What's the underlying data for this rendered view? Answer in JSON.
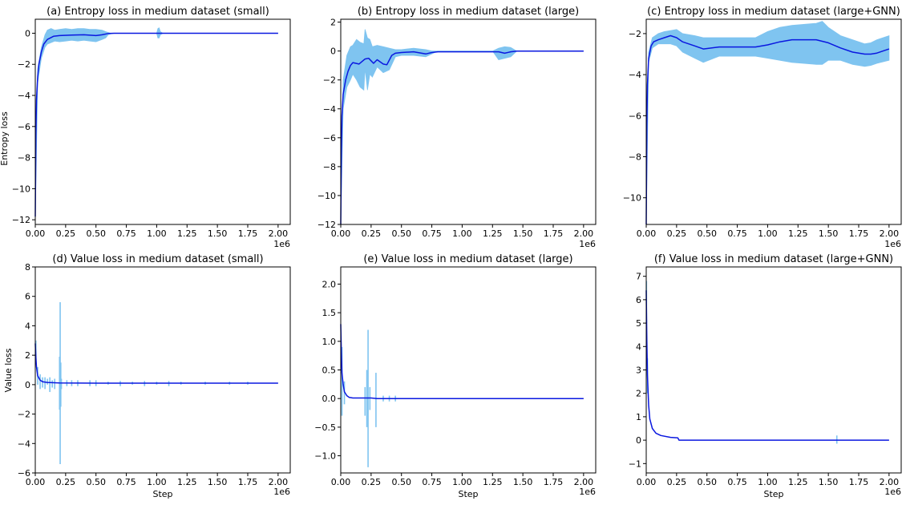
{
  "figure": {
    "background": "#ffffff",
    "band_color": "#7fc4f0",
    "line_color": "#0a18e0"
  },
  "chart_data": [
    {
      "type": "line",
      "title": "(a) Entropy loss in medium dataset (small)",
      "xlabel": "",
      "ylabel": "Entropy loss",
      "x_offset_label": "1e6",
      "xlim": [
        0.0,
        2.1
      ],
      "ylim": [
        -12.3,
        0.9
      ],
      "xticks": [
        0.0,
        0.25,
        0.5,
        0.75,
        1.0,
        1.25,
        1.5,
        1.75,
        2.0
      ],
      "xtick_labels": [
        "0.00",
        "0.25",
        "0.50",
        "0.75",
        "1.00",
        "1.25",
        "1.50",
        "1.75",
        "2.00"
      ],
      "yticks": [
        0,
        -2,
        -4,
        -6,
        -8,
        -10,
        -12
      ],
      "ytick_labels": [
        "0",
        "−2",
        "−4",
        "−6",
        "−8",
        "−10",
        "−12"
      ],
      "series": [
        {
          "kind": "mean",
          "x": [
            0.0,
            0.005,
            0.01,
            0.02,
            0.03,
            0.05,
            0.07,
            0.1,
            0.15,
            0.2,
            0.3,
            0.4,
            0.5,
            0.55,
            0.6,
            0.65,
            0.7,
            1.0,
            1.5,
            2.0
          ],
          "y": [
            -11.8,
            -6.5,
            -4.3,
            -2.8,
            -2.0,
            -1.2,
            -0.7,
            -0.4,
            -0.2,
            -0.15,
            -0.12,
            -0.1,
            -0.15,
            -0.1,
            -0.02,
            0.0,
            0.0,
            0.0,
            0.0,
            0.0
          ]
        },
        {
          "kind": "band",
          "x": [
            0.0,
            0.02,
            0.05,
            0.08,
            0.1,
            0.13,
            0.16,
            0.2,
            0.25,
            0.3,
            0.35,
            0.4,
            0.45,
            0.5,
            0.55,
            0.58,
            0.6,
            0.62,
            0.65,
            1.0,
            1.01,
            1.02,
            1.03,
            1.05,
            2.0
          ],
          "lower": [
            -11.8,
            -3.2,
            -1.6,
            -0.9,
            -0.7,
            -0.6,
            -0.5,
            -0.55,
            -0.5,
            -0.45,
            -0.5,
            -0.45,
            -0.5,
            -0.55,
            -0.4,
            -0.3,
            -0.1,
            -0.05,
            0.0,
            0.0,
            -0.3,
            -0.3,
            -0.1,
            0.0,
            0.0
          ],
          "upper": [
            -11.8,
            -2.3,
            -0.9,
            -0.1,
            0.2,
            0.3,
            0.2,
            0.25,
            0.3,
            0.25,
            0.3,
            0.3,
            0.25,
            0.25,
            0.2,
            0.1,
            0.05,
            0.0,
            0.0,
            0.0,
            0.3,
            0.35,
            0.1,
            0.0,
            0.0
          ]
        }
      ]
    },
    {
      "type": "line",
      "title": "(b) Entropy loss in medium dataset (large)",
      "xlabel": "",
      "ylabel": "",
      "x_offset_label": "1e6",
      "xlim": [
        0.0,
        2.1
      ],
      "ylim": [
        -12.0,
        2.2
      ],
      "xticks": [
        0.0,
        0.25,
        0.5,
        0.75,
        1.0,
        1.25,
        1.5,
        1.75,
        2.0
      ],
      "xtick_labels": [
        "0.00",
        "0.25",
        "0.50",
        "0.75",
        "1.00",
        "1.25",
        "1.50",
        "1.75",
        "2.00"
      ],
      "yticks": [
        2,
        0,
        -2,
        -4,
        -6,
        -8,
        -10,
        -12
      ],
      "ytick_labels": [
        "2",
        "0",
        "−2",
        "−4",
        "−6",
        "−8",
        "−10",
        "−12"
      ],
      "series": [
        {
          "kind": "mean",
          "x": [
            0.0,
            0.005,
            0.01,
            0.02,
            0.04,
            0.06,
            0.08,
            0.1,
            0.15,
            0.2,
            0.23,
            0.27,
            0.3,
            0.35,
            0.38,
            0.42,
            0.45,
            0.5,
            0.6,
            0.7,
            0.75,
            0.8,
            1.0,
            1.3,
            1.35,
            1.4,
            1.45,
            2.0
          ],
          "y": [
            -12.0,
            -7.0,
            -4.5,
            -3.0,
            -2.0,
            -1.4,
            -1.0,
            -0.8,
            -0.9,
            -0.55,
            -0.5,
            -0.85,
            -0.6,
            -0.9,
            -0.95,
            -0.3,
            -0.15,
            -0.1,
            -0.05,
            -0.2,
            -0.1,
            -0.05,
            -0.05,
            -0.05,
            -0.15,
            -0.05,
            0.0,
            0.0
          ]
        },
        {
          "kind": "band",
          "x": [
            0.0,
            0.02,
            0.05,
            0.08,
            0.1,
            0.13,
            0.16,
            0.19,
            0.2,
            0.22,
            0.24,
            0.26,
            0.3,
            0.35,
            0.4,
            0.45,
            0.5,
            0.6,
            0.7,
            0.75,
            0.8,
            1.25,
            1.3,
            1.35,
            1.4,
            1.45,
            2.0
          ],
          "lower": [
            -12.0,
            -4.0,
            -2.5,
            -2.0,
            -1.6,
            -2.0,
            -2.5,
            -2.7,
            -1.2,
            -2.7,
            -1.6,
            -1.8,
            -1.1,
            -1.5,
            -1.3,
            -0.4,
            -0.3,
            -0.3,
            -0.4,
            -0.2,
            0.0,
            0.0,
            -0.6,
            -0.5,
            -0.4,
            0.0,
            0.0
          ],
          "upper": [
            -12.0,
            -2.0,
            -0.3,
            0.3,
            0.4,
            0.8,
            0.6,
            0.5,
            1.5,
            0.9,
            0.8,
            0.3,
            0.4,
            0.3,
            0.2,
            0.1,
            0.1,
            0.2,
            0.1,
            0.0,
            0.0,
            0.0,
            0.2,
            0.3,
            0.25,
            0.0,
            0.0
          ]
        }
      ]
    },
    {
      "type": "line",
      "title": "(c) Entropy loss in medium dataset (large+GNN)",
      "xlabel": "",
      "ylabel": "",
      "x_offset_label": "1e6",
      "xlim": [
        0.0,
        2.1
      ],
      "ylim": [
        -11.3,
        -1.3
      ],
      "xticks": [
        0.0,
        0.25,
        0.5,
        0.75,
        1.0,
        1.25,
        1.5,
        1.75,
        2.0
      ],
      "xtick_labels": [
        "0.00",
        "0.25",
        "0.50",
        "0.75",
        "1.00",
        "1.25",
        "1.50",
        "1.75",
        "2.00"
      ],
      "yticks": [
        -2,
        -4,
        -6,
        -8,
        -10
      ],
      "ytick_labels": [
        "−2",
        "−4",
        "−6",
        "−8",
        "−10"
      ],
      "series": [
        {
          "kind": "mean",
          "x": [
            0.0,
            0.005,
            0.01,
            0.02,
            0.04,
            0.06,
            0.1,
            0.15,
            0.2,
            0.25,
            0.3,
            0.4,
            0.47,
            0.6,
            0.9,
            1.0,
            1.1,
            1.2,
            1.4,
            1.5,
            1.6,
            1.7,
            1.8,
            1.85,
            1.9,
            2.0
          ],
          "y": [
            -11.3,
            -6.5,
            -4.5,
            -3.2,
            -2.6,
            -2.4,
            -2.3,
            -2.2,
            -2.1,
            -2.2,
            -2.4,
            -2.6,
            -2.75,
            -2.65,
            -2.65,
            -2.55,
            -2.4,
            -2.3,
            -2.3,
            -2.45,
            -2.7,
            -2.9,
            -3.0,
            -3.0,
            -2.95,
            -2.75
          ]
        },
        {
          "kind": "band",
          "x": [
            0.0,
            0.02,
            0.05,
            0.1,
            0.15,
            0.2,
            0.25,
            0.3,
            0.4,
            0.47,
            0.6,
            0.9,
            1.0,
            1.1,
            1.2,
            1.4,
            1.45,
            1.5,
            1.6,
            1.7,
            1.8,
            1.85,
            1.9,
            2.0
          ],
          "lower": [
            -11.3,
            -3.4,
            -2.7,
            -2.5,
            -2.5,
            -2.5,
            -2.6,
            -2.9,
            -3.2,
            -3.4,
            -3.1,
            -3.1,
            -3.2,
            -3.3,
            -3.4,
            -3.5,
            -3.5,
            -3.3,
            -3.3,
            -3.5,
            -3.6,
            -3.55,
            -3.45,
            -3.3
          ],
          "upper": [
            -11.3,
            -2.9,
            -2.2,
            -2.0,
            -1.9,
            -1.85,
            -1.8,
            -2.0,
            -2.1,
            -2.2,
            -2.2,
            -2.2,
            -1.9,
            -1.7,
            -1.6,
            -1.5,
            -1.4,
            -1.7,
            -2.1,
            -2.3,
            -2.5,
            -2.45,
            -2.3,
            -2.1
          ]
        }
      ]
    },
    {
      "type": "line",
      "title": "(d) Value loss in medium dataset (small)",
      "xlabel": "Step",
      "ylabel": "Value loss",
      "x_offset_label": "1e6",
      "xlim": [
        0.0,
        2.1
      ],
      "ylim": [
        -6.0,
        8.0
      ],
      "xticks": [
        0.0,
        0.25,
        0.5,
        0.75,
        1.0,
        1.25,
        1.5,
        1.75,
        2.0
      ],
      "xtick_labels": [
        "0.00",
        "0.25",
        "0.50",
        "0.75",
        "1.00",
        "1.25",
        "1.50",
        "1.75",
        "2.00"
      ],
      "yticks": [
        8,
        6,
        4,
        2,
        0,
        -2,
        -4,
        -6
      ],
      "ytick_labels": [
        "8",
        "6",
        "4",
        "2",
        "0",
        "−2",
        "−4",
        "−6"
      ],
      "series": [
        {
          "kind": "mean",
          "x": [
            0.0,
            0.005,
            0.01,
            0.02,
            0.04,
            0.06,
            0.1,
            0.2,
            0.5,
            1.0,
            1.5,
            2.0
          ],
          "y": [
            2.8,
            1.8,
            1.2,
            0.6,
            0.3,
            0.2,
            0.15,
            0.12,
            0.1,
            0.1,
            0.1,
            0.1
          ]
        },
        {
          "kind": "spikes",
          "x": [
            0.005,
            0.02,
            0.04,
            0.06,
            0.08,
            0.1,
            0.12,
            0.14,
            0.16,
            0.2,
            0.205,
            0.21,
            0.215,
            0.26,
            0.3,
            0.35,
            0.45,
            0.5,
            0.6,
            0.7,
            0.8,
            0.9,
            1.0,
            1.1,
            1.2,
            1.4,
            1.6,
            1.75
          ],
          "lower": [
            1.5,
            0.0,
            -0.3,
            -0.2,
            -0.3,
            0.0,
            -0.5,
            -0.2,
            -0.3,
            -1.7,
            -5.4,
            -1.5,
            -0.3,
            -0.1,
            -0.1,
            -0.1,
            -0.1,
            -0.1,
            0.0,
            -0.1,
            0.0,
            -0.1,
            0.0,
            -0.1,
            0.0,
            0.0,
            0.0,
            0.0
          ],
          "upper": [
            3.0,
            1.2,
            0.7,
            0.5,
            0.5,
            0.4,
            0.5,
            0.3,
            0.4,
            1.9,
            5.6,
            1.5,
            0.4,
            0.3,
            0.3,
            0.3,
            0.3,
            0.3,
            0.2,
            0.25,
            0.2,
            0.25,
            0.2,
            0.25,
            0.2,
            0.2,
            0.2,
            0.2
          ]
        }
      ]
    },
    {
      "type": "line",
      "title": "(e) Value loss in medium dataset (large)",
      "xlabel": "Step",
      "ylabel": "",
      "x_offset_label": "1e6",
      "xlim": [
        0.0,
        2.1
      ],
      "ylim": [
        -1.3,
        2.3
      ],
      "xticks": [
        0.0,
        0.25,
        0.5,
        0.75,
        1.0,
        1.25,
        1.5,
        1.75,
        2.0
      ],
      "xtick_labels": [
        "0.00",
        "0.25",
        "0.50",
        "0.75",
        "1.00",
        "1.25",
        "1.50",
        "1.75",
        "2.00"
      ],
      "yticks": [
        2.0,
        1.5,
        1.0,
        0.5,
        0.0,
        -0.5,
        -1.0
      ],
      "ytick_labels": [
        "2.0",
        "1.5",
        "1.0",
        "0.5",
        "0.0",
        "−0.5",
        "−1.0"
      ],
      "series": [
        {
          "kind": "mean",
          "x": [
            0.0,
            0.005,
            0.01,
            0.02,
            0.03,
            0.05,
            0.07,
            0.1,
            0.2,
            0.25,
            0.3,
            0.5,
            1.0,
            1.5,
            2.0
          ],
          "y": [
            1.3,
            0.8,
            0.45,
            0.25,
            0.12,
            0.05,
            0.02,
            0.01,
            0.01,
            0.01,
            0.0,
            0.0,
            0.0,
            0.0,
            0.0
          ]
        },
        {
          "kind": "spikes",
          "x": [
            0.01,
            0.03,
            0.2,
            0.215,
            0.225,
            0.24,
            0.29,
            0.35,
            0.4,
            0.45
          ],
          "lower": [
            -0.3,
            -0.1,
            -0.3,
            -0.5,
            -1.2,
            -0.2,
            -0.5,
            -0.05,
            -0.05,
            -0.05
          ],
          "upper": [
            0.9,
            0.3,
            0.2,
            0.5,
            1.2,
            0.2,
            0.45,
            0.05,
            0.05,
            0.05
          ]
        }
      ]
    },
    {
      "type": "line",
      "title": "(f) Value loss in medium dataset (large+GNN)",
      "xlabel": "Step",
      "ylabel": "",
      "x_offset_label": "1e6",
      "xlim": [
        0.0,
        2.1
      ],
      "ylim": [
        -1.4,
        7.4
      ],
      "xticks": [
        0.0,
        0.25,
        0.5,
        0.75,
        1.0,
        1.25,
        1.5,
        1.75,
        2.0
      ],
      "xtick_labels": [
        "0.00",
        "0.25",
        "0.50",
        "0.75",
        "1.00",
        "1.25",
        "1.50",
        "1.75",
        "2.00"
      ],
      "yticks": [
        7,
        6,
        5,
        4,
        3,
        2,
        1,
        0,
        -1
      ],
      "ytick_labels": [
        "7",
        "6",
        "5",
        "4",
        "3",
        "2",
        "1",
        "0",
        "−1"
      ],
      "series": [
        {
          "kind": "mean",
          "x": [
            0.0,
            0.005,
            0.01,
            0.02,
            0.03,
            0.05,
            0.08,
            0.12,
            0.2,
            0.26,
            0.27,
            0.5,
            1.0,
            1.5,
            2.0
          ],
          "y": [
            6.4,
            4.2,
            2.8,
            1.5,
            0.9,
            0.5,
            0.3,
            0.2,
            0.12,
            0.1,
            0.0,
            0.0,
            0.0,
            0.0,
            0.0
          ]
        },
        {
          "kind": "spikes",
          "x": [
            0.002,
            0.01,
            1.57
          ],
          "lower": [
            5.0,
            2.0,
            -0.15
          ],
          "upper": [
            6.8,
            3.5,
            0.2
          ]
        }
      ]
    }
  ]
}
